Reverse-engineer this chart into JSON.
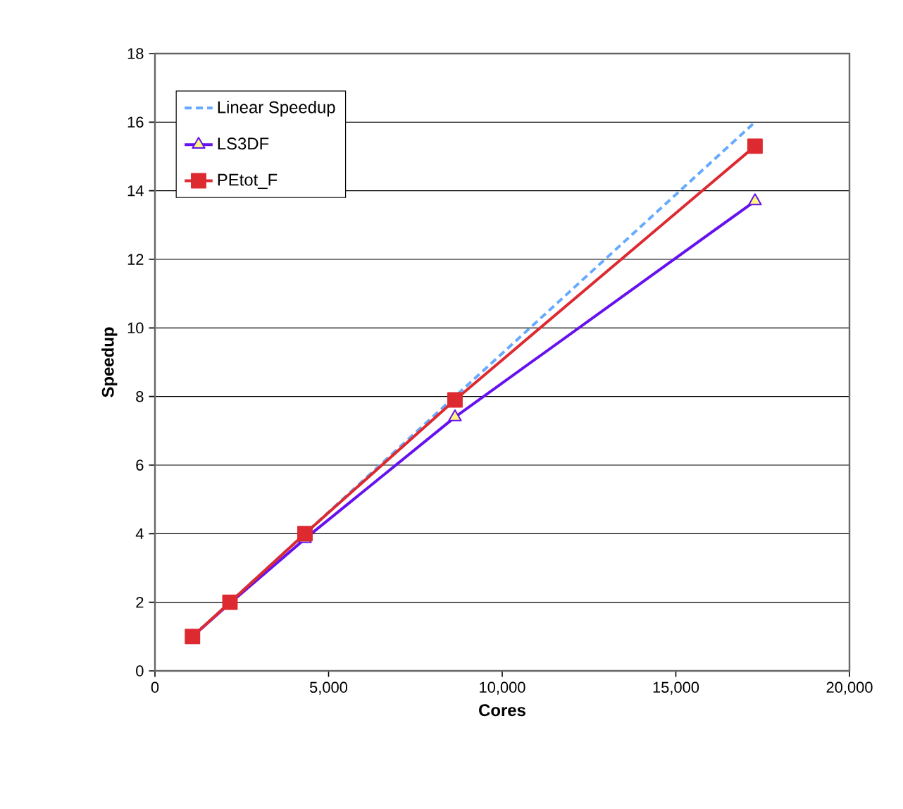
{
  "chart_data": {
    "type": "line",
    "xlabel": "Cores",
    "ylabel": "Speedup",
    "xlim": [
      0,
      20000
    ],
    "xticks": [
      {
        "value": 0,
        "label": "0"
      },
      {
        "value": 5000,
        "label": "5,000"
      },
      {
        "value": 10000,
        "label": "10,000"
      },
      {
        "value": 15000,
        "label": "15,000"
      },
      {
        "value": 20000,
        "label": "20,000"
      }
    ],
    "ylim": [
      0,
      18
    ],
    "yticks": [
      0,
      2,
      4,
      6,
      8,
      10,
      12,
      14,
      16,
      18
    ],
    "grid": "y",
    "legend": "top left",
    "x": [
      1080,
      2160,
      4320,
      8640,
      17280
    ],
    "series": [
      {
        "name": "Linear Speedup",
        "color": "#66aaff",
        "values": [
          1,
          2,
          4,
          8,
          16
        ],
        "marker": "none",
        "line_style": "dashed"
      },
      {
        "name": "LS3DF",
        "color": "#6611ee",
        "values": [
          1,
          1.97,
          3.85,
          7.4,
          13.7
        ],
        "marker": "triangle",
        "line_style": "solid"
      },
      {
        "name": "PEtot_F",
        "color": "#dd2a30",
        "values": [
          1,
          2,
          4,
          7.9,
          15.3
        ],
        "marker": "square",
        "line_style": "solid"
      }
    ]
  }
}
